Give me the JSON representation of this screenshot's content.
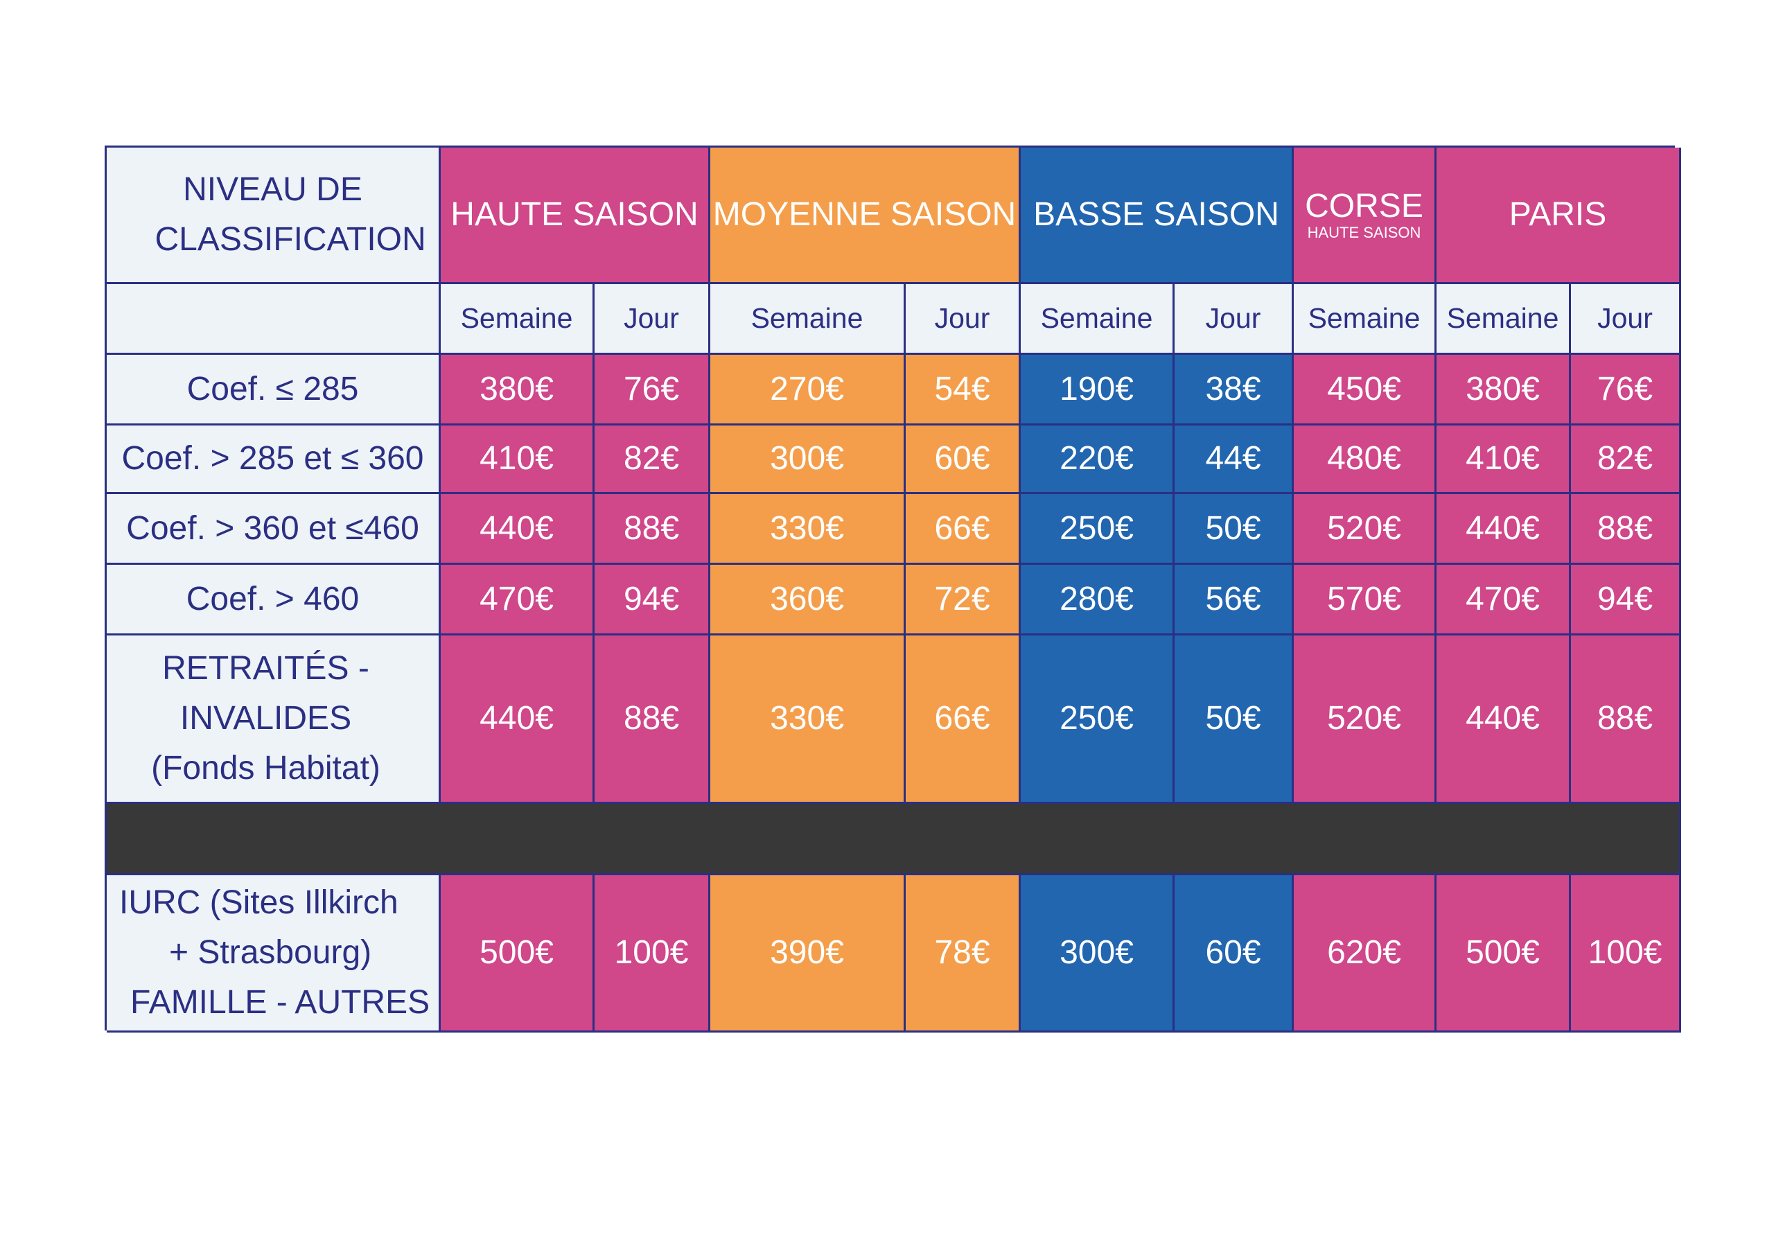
{
  "colors": {
    "pink": "#d0478a",
    "orange": "#f49e4b",
    "blue": "#2266b0",
    "separator": "#383838",
    "border": "#2b2f83",
    "label_bg": "#eef3f8"
  },
  "header": {
    "niveau": "NIVEAU DE CLASSIFICATION",
    "haute": "HAUTE SAISON",
    "moyenne": "MOYENNE SAISON",
    "basse": "BASSE SAISON",
    "corse": "CORSE",
    "corse_sub": "HAUTE SAISON",
    "paris": "PARIS"
  },
  "subheader": [
    "Semaine",
    "Jour",
    "Semaine",
    "Jour",
    "Semaine",
    "Jour",
    "Semaine",
    "Semaine",
    "Jour"
  ],
  "rows": [
    {
      "label": "Coef. ≤ 285",
      "values": [
        "380€",
        "76€",
        "270€",
        "54€",
        "190€",
        "38€",
        "450€",
        "380€",
        "76€"
      ]
    },
    {
      "label": "Coef. > 285 et ≤ 360",
      "values": [
        "410€",
        "82€",
        "300€",
        "60€",
        "220€",
        "44€",
        "480€",
        "410€",
        "82€"
      ]
    },
    {
      "label": "Coef. > 360 et ≤460",
      "values": [
        "440€",
        "88€",
        "330€",
        "66€",
        "250€",
        "50€",
        "520€",
        "440€",
        "88€"
      ]
    },
    {
      "label": "Coef. > 460",
      "values": [
        "470€",
        "94€",
        "360€",
        "72€",
        "280€",
        "56€",
        "570€",
        "470€",
        "94€"
      ]
    },
    {
      "label_lines": [
        "RETRAITÉS -",
        "INVALIDES",
        "(Fonds Habitat)"
      ],
      "values": [
        "440€",
        "88€",
        "330€",
        "66€",
        "250€",
        "50€",
        "520€",
        "440€",
        "88€"
      ]
    },
    {
      "label_lines": [
        "IURC (Sites Illkirch",
        "+ Strasbourg)",
        "FAMILLE - AUTRES"
      ],
      "values": [
        "500€",
        "100€",
        "390€",
        "78€",
        "300€",
        "60€",
        "620€",
        "500€",
        "100€"
      ]
    }
  ]
}
